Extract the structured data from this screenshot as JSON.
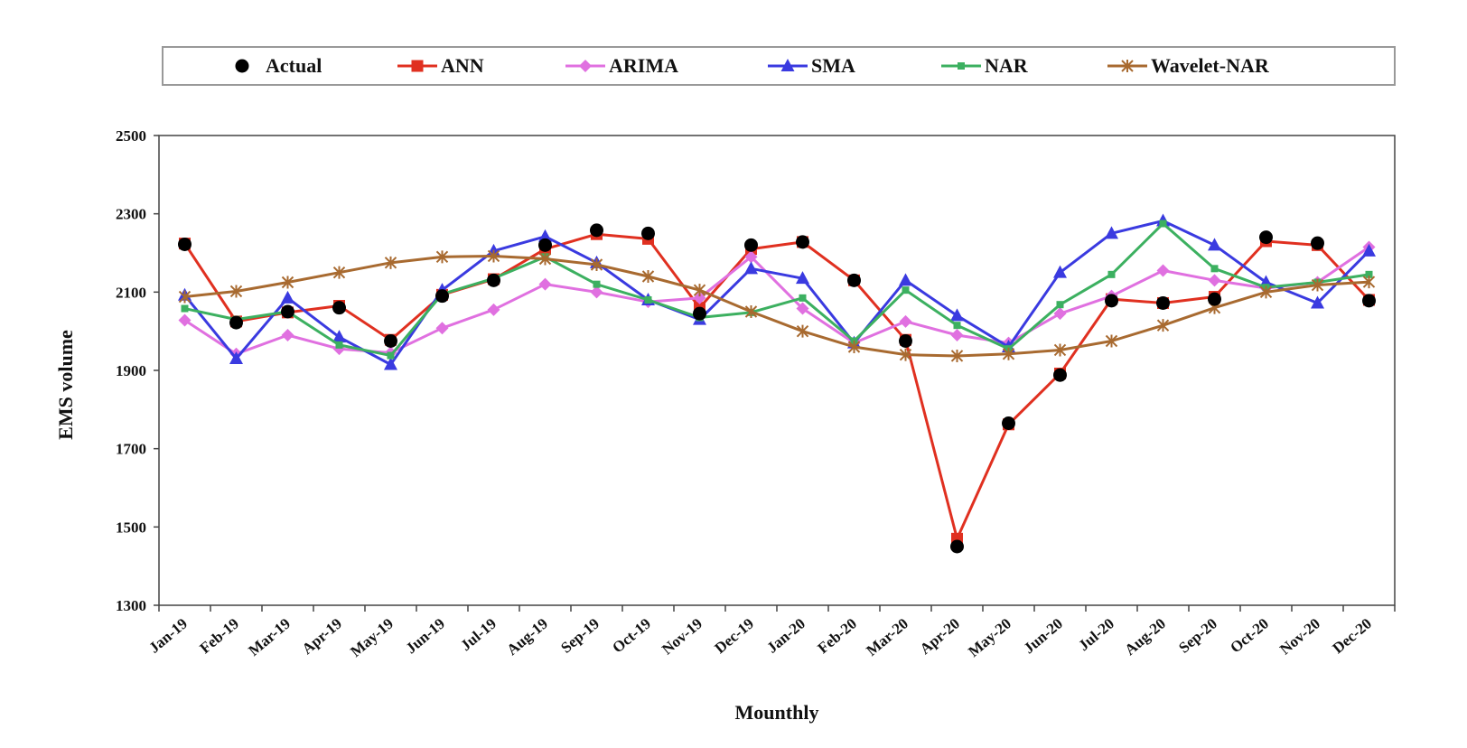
{
  "chart_data": {
    "type": "line",
    "title": "",
    "xlabel": "Mounthly",
    "ylabel": "EMS volume",
    "ylim": [
      1300,
      2500
    ],
    "yticks": [
      1300,
      1500,
      1700,
      1900,
      2100,
      2300,
      2500
    ],
    "grid": false,
    "legend_position": "top",
    "categories": [
      "Jan-19",
      "Feb-19",
      "Mar-19",
      "Apr-19",
      "May-19",
      "Jun-19",
      "Jul-19",
      "Aug-19",
      "Sep-19",
      "Oct-19",
      "Nov-19",
      "Dec-19",
      "Jan-20",
      "Feb-20",
      "Mar-20",
      "Apr-20",
      "May-20",
      "Jun-20",
      "Jul-20",
      "Aug-20",
      "Sep-20",
      "Oct-20",
      "Nov-20",
      "Dec-20"
    ],
    "series": [
      {
        "name": "Actual",
        "color": "#000000",
        "marker": "circle",
        "line": false,
        "values": [
          2222,
          2022,
          2050,
          2060,
          1975,
          2090,
          2130,
          2220,
          2258,
          2250,
          2045,
          2220,
          2228,
          2130,
          1975,
          1450,
          1765,
          1888,
          2078,
          2072,
          2082,
          2240,
          2225,
          2078
        ]
      },
      {
        "name": "ANN",
        "color": "#e03020",
        "marker": "square",
        "line": true,
        "values": [
          2224,
          2025,
          2048,
          2065,
          1978,
          2093,
          2133,
          2210,
          2248,
          2236,
          2060,
          2210,
          2228,
          2130,
          1978,
          1470,
          1762,
          1892,
          2082,
          2072,
          2088,
          2230,
          2220,
          2080
        ]
      },
      {
        "name": "ARIMA",
        "color": "#e070e0",
        "marker": "diamond",
        "line": true,
        "values": [
          2028,
          1942,
          1990,
          1955,
          1945,
          2008,
          2055,
          2120,
          2100,
          2075,
          2085,
          2190,
          2058,
          1970,
          2025,
          1990,
          1970,
          2045,
          2090,
          2155,
          2130,
          2110,
          2125,
          2215
        ]
      },
      {
        "name": "SMA",
        "color": "#3a3ae0",
        "marker": "triangle",
        "line": true,
        "values": [
          2092,
          1930,
          2085,
          1985,
          1915,
          2105,
          2205,
          2242,
          2175,
          2080,
          2030,
          2160,
          2135,
          1970,
          2130,
          2040,
          1960,
          2150,
          2250,
          2282,
          2220,
          2125,
          2072,
          2205
        ]
      },
      {
        "name": "NAR",
        "color": "#3cb060",
        "marker": "small-square",
        "line": true,
        "values": [
          2058,
          2030,
          2050,
          1965,
          1938,
          2095,
          2135,
          2190,
          2120,
          2080,
          2035,
          2048,
          2085,
          1975,
          2105,
          2015,
          1955,
          2068,
          2145,
          2275,
          2160,
          2112,
          2125,
          2145
        ]
      },
      {
        "name": "Wavelet-NAR",
        "color": "#a86a30",
        "marker": "asterisk",
        "line": true,
        "values": [
          2088,
          2102,
          2125,
          2150,
          2175,
          2190,
          2192,
          2185,
          2170,
          2140,
          2105,
          2050,
          2000,
          1960,
          1940,
          1937,
          1942,
          1952,
          1975,
          2015,
          2060,
          2100,
          2118,
          2126
        ]
      }
    ]
  }
}
